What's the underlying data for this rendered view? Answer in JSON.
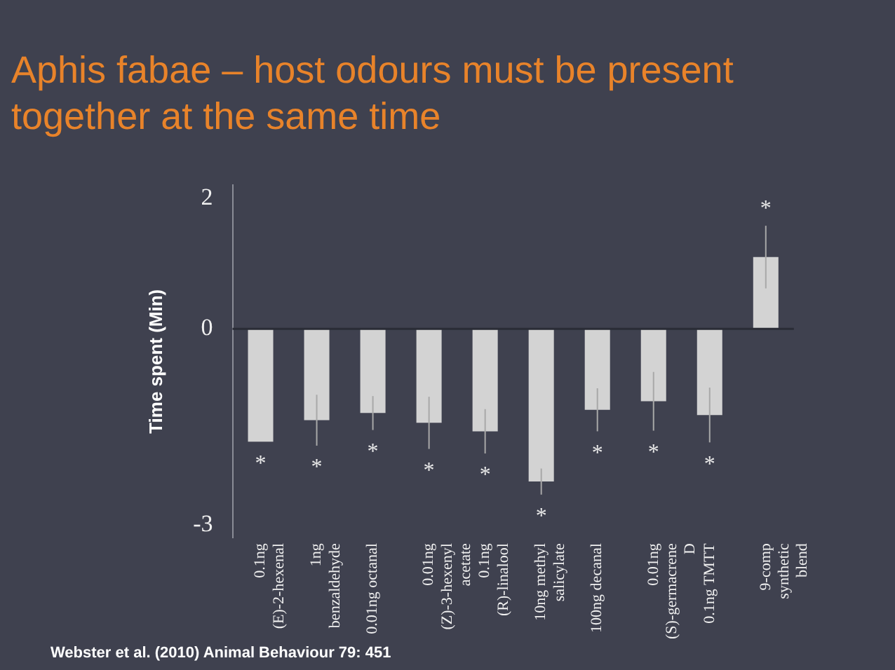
{
  "chart_data": {
    "type": "bar",
    "title": "Aphis fabae – host odours must be present together at the same time",
    "ref_lines": [
      {
        "axis": "y",
        "value": 0,
        "color": "#2a2c36"
      }
    ],
    "ylabel": "Time spent (Min)",
    "categories": [
      "0.1ng (E)-2-hexenal",
      "1ng benzaldehyde",
      "0.01ng octanal",
      "0.01ng (Z)-3-hexenyl acetate",
      "0.1ng (R)-linalool",
      "10ng methyl salicylate",
      "100ng decanal",
      "0.01ng (S)-germacrene D",
      "0.1ng TMTT",
      "9-comp synthetic blend"
    ],
    "values": [
      -1.73,
      -1.4,
      -1.29,
      -1.44,
      -1.57,
      -2.34,
      -1.24,
      -1.11,
      -1.32,
      1.1
    ],
    "errors": [
      null,
      0.39,
      0.26,
      0.4,
      0.34,
      0.2,
      0.33,
      0.45,
      0.42,
      0.48
    ],
    "color": "#d3d3d3",
    "ylim": [
      -3.2,
      2.2
    ],
    "yticks": [
      2,
      0,
      -3
    ],
    "grid": false,
    "legend": false,
    "annotations": [
      "*",
      "*",
      "*",
      "*",
      "*",
      "*",
      "*",
      "*",
      "*",
      "*",
      "Webster et al. (2010) Animal Behaviour 79: 451"
    ]
  }
}
